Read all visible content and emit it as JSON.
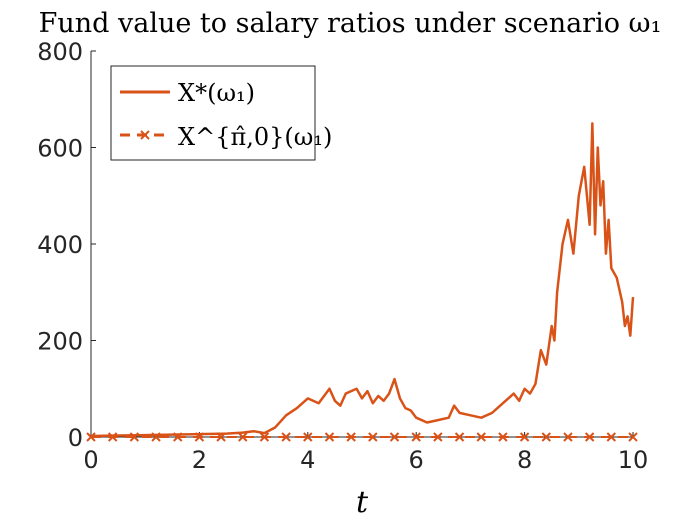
{
  "chart_data": {
    "type": "line",
    "title": "Fund value to salary ratios under scenario ω₁",
    "xlabel": "t",
    "ylabel": "",
    "xlim": [
      0,
      10
    ],
    "ylim": [
      0,
      800
    ],
    "xticks": [
      0,
      2,
      4,
      6,
      8,
      10
    ],
    "yticks": [
      0,
      200,
      400,
      600,
      800
    ],
    "xtick_labels": [
      "0",
      "2",
      "4",
      "6",
      "8",
      "10"
    ],
    "ytick_labels": [
      "0",
      "200",
      "400",
      "600",
      "800"
    ],
    "legend_position": "top-left",
    "grid": false,
    "series": [
      {
        "name": "X*(ω₁)",
        "color": "#D95319",
        "style": "solid",
        "x": [
          0,
          0.5,
          1,
          1.5,
          2,
          2.5,
          2.8,
          3,
          3.2,
          3.4,
          3.6,
          3.8,
          4,
          4.2,
          4.4,
          4.5,
          4.6,
          4.7,
          4.8,
          4.9,
          5,
          5.1,
          5.2,
          5.3,
          5.4,
          5.5,
          5.6,
          5.7,
          5.8,
          5.9,
          6,
          6.2,
          6.4,
          6.6,
          6.7,
          6.8,
          7,
          7.2,
          7.4,
          7.6,
          7.8,
          7.9,
          8,
          8.1,
          8.2,
          8.3,
          8.4,
          8.5,
          8.55,
          8.6,
          8.7,
          8.8,
          8.9,
          9,
          9.1,
          9.2,
          9.25,
          9.3,
          9.35,
          9.4,
          9.45,
          9.5,
          9.55,
          9.6,
          9.7,
          9.8,
          9.85,
          9.9,
          9.95,
          10
        ],
        "values": [
          2,
          3,
          4,
          5,
          6,
          7,
          9,
          12,
          8,
          20,
          45,
          60,
          80,
          70,
          100,
          75,
          65,
          90,
          95,
          100,
          80,
          95,
          70,
          85,
          75,
          90,
          120,
          80,
          60,
          55,
          40,
          30,
          35,
          40,
          65,
          50,
          45,
          40,
          50,
          70,
          90,
          75,
          100,
          90,
          110,
          180,
          150,
          230,
          200,
          300,
          400,
          450,
          380,
          500,
          560,
          440,
          650,
          420,
          600,
          480,
          530,
          380,
          450,
          350,
          330,
          280,
          230,
          250,
          210,
          290
        ]
      },
      {
        "name": "X^{π̂,0}(ω₁)",
        "color": "#D95319",
        "style": "dashed-x",
        "x": [
          0,
          0.4,
          0.8,
          1.2,
          1.6,
          2,
          2.4,
          2.8,
          3.2,
          3.6,
          4,
          4.4,
          4.8,
          5.2,
          5.6,
          6,
          6.4,
          6.8,
          7.2,
          7.6,
          8,
          8.4,
          8.8,
          9.2,
          9.6,
          10
        ],
        "values": [
          0,
          0,
          0,
          0,
          0,
          0,
          0,
          0,
          0,
          0,
          0,
          0,
          0,
          0,
          0,
          0,
          0,
          0,
          0,
          0,
          0,
          0,
          0,
          0,
          0,
          0
        ]
      }
    ]
  }
}
